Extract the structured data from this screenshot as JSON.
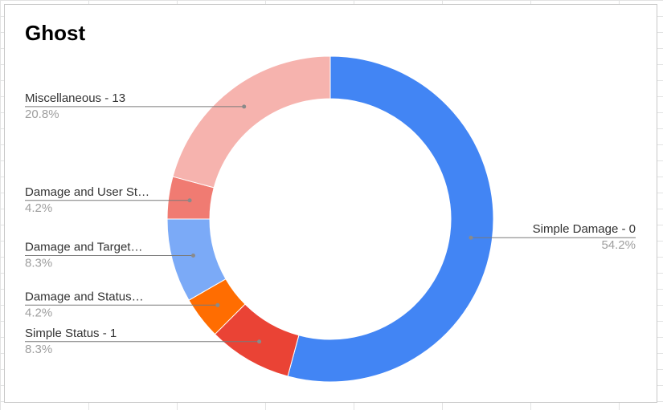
{
  "chart_data": {
    "type": "pie",
    "donut": true,
    "title": "Ghost",
    "legend": "labeled-slices",
    "slices": [
      {
        "label": "Simple Damage - 0",
        "pct_label": "54.2%",
        "value": 54.2,
        "color": "#4285f4",
        "side": "right"
      },
      {
        "label": "Simple Status - 1",
        "pct_label": "8.3%",
        "value": 8.3,
        "color": "#ea4335",
        "side": "left"
      },
      {
        "label": "Damage and Status…",
        "pct_label": "4.2%",
        "value": 4.2,
        "color": "#ff6d01",
        "side": "left"
      },
      {
        "label": "Damage and Target…",
        "pct_label": "8.3%",
        "value": 8.3,
        "color": "#7baaf7",
        "side": "left"
      },
      {
        "label": "Damage and User St…",
        "pct_label": "4.2%",
        "value": 4.2,
        "color": "#f07b72",
        "side": "left"
      },
      {
        "label": "Miscellaneous - 13",
        "pct_label": "20.8%",
        "value": 20.8,
        "color": "#f6b3ae",
        "side": "left"
      }
    ]
  }
}
